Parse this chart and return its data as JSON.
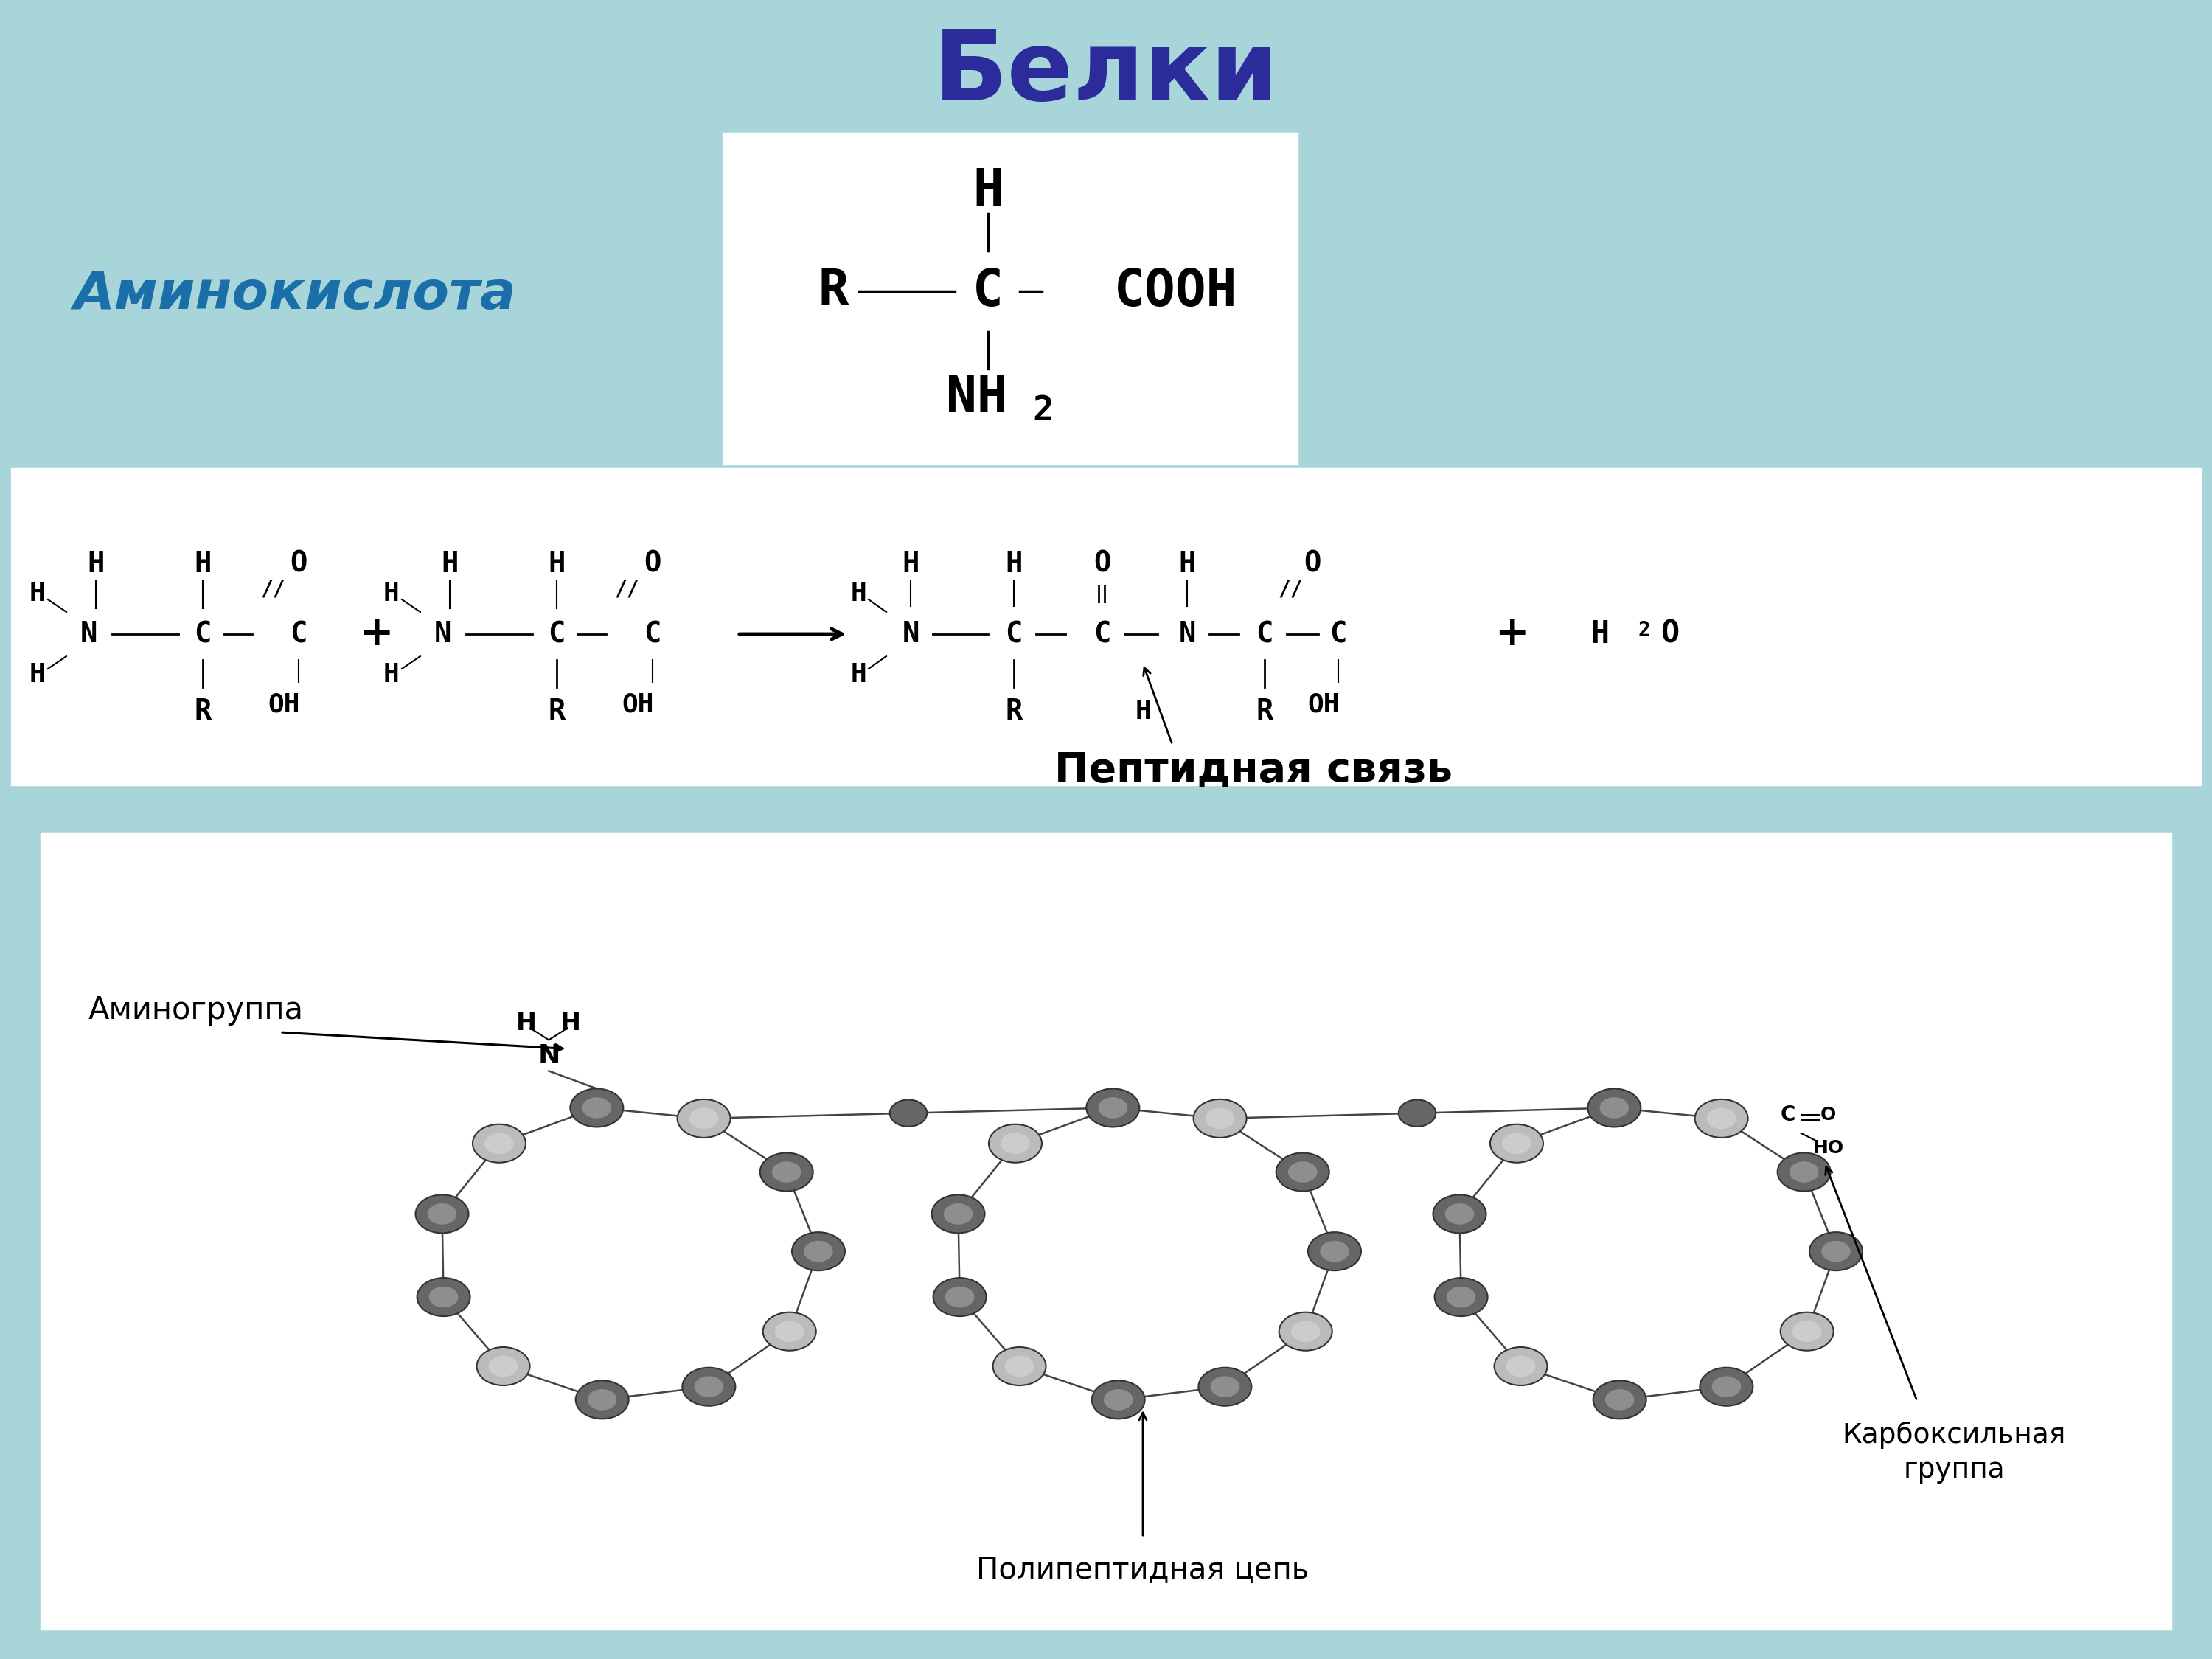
{
  "bg_color": "#a8d5d9",
  "title": "Белки",
  "title_color": "#2b2b9b",
  "title_fontsize": 95,
  "aminoacid_label": "Аминокислота",
  "aminoacid_label_color": "#1a6fa8",
  "aminoacid_label_fontsize": 52,
  "peptide_label": "Пептидная связь",
  "peptide_label_fontsize": 40,
  "polypeptide_label": "Полипептидная цепь",
  "aminogroup_label": "Аминогруппа",
  "carboxyl_label": "Карбоксильная\nгруппа",
  "white": "#ffffff",
  "black": "#000000",
  "dark_bead": "#666666",
  "light_bead": "#bbbbbb",
  "bead_edge": "#333333"
}
